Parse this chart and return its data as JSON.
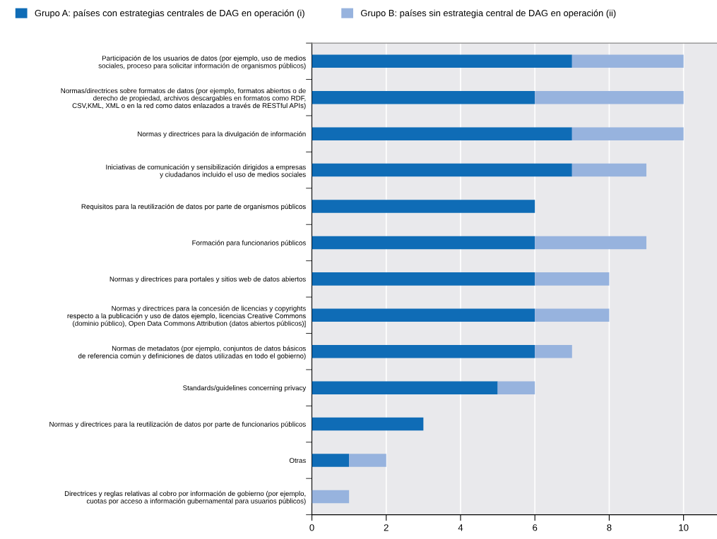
{
  "chart_data": {
    "type": "bar",
    "orientation": "horizontal",
    "stacked": true,
    "categories": [
      "Participación de los usuarios de datos (por ejemplo, uso de medios\nsociales, proceso para solicitar información de organismos públicos)",
      "Normas/directrices sobre formatos de datos (por ejemplo, formatos abiertos o de\nderecho de propiedad, archivos descargables en formatos como RDF,\nCSV,KML, XML o en la red como datos enlazados a través de RESTful APIs)",
      "Normas y directrices para la divulgación de información",
      "Iniciativas de comunicación y sensibilización dirigidos a empresas\ny ciudadanos incluido el uso de medios sociales",
      "Requisitos para la reutilización de datos por parte de organismos públicos",
      "Formación para funcionarios públicos",
      "Normas y directrices para portales y sitios web de datos abiertos",
      "Normas y directrices para la concesión de licencias y copyrights\nrespecto a la publicación y uso de datos ejemplo, licencias Creative Commons\n(dominio público), Open Data Commons Attribution (datos abiertos públicos)]",
      "Normas de metadatos (por ejemplo, conjuntos de datos básicos\nde referencia común y definiciones de datos utilizadas en todo el gobierno)",
      "Standards/guidelines concerning privacy",
      "Normas y directrices para la reutilización de datos por parte de funcionarios públicos",
      "Otras",
      "Directrices y reglas relativas al cobro por información de gobierno (por ejemplo,\ncuotas por acceso a información gubernamental para usuarios públicos)"
    ],
    "series": [
      {
        "name": "Grupo A: países con estrategias centrales de DAG en operación (i)",
        "color": "#0f6cb6",
        "values": [
          7,
          6,
          7,
          7,
          6,
          6,
          6,
          6,
          6,
          5,
          3,
          1,
          0
        ]
      },
      {
        "name": "Grupo B: países sin estrategia central de DAG en operación (ii)",
        "color": "#97b3de",
        "values": [
          3,
          4,
          3,
          2,
          0,
          3,
          2,
          2,
          1,
          1,
          0,
          1,
          1
        ]
      }
    ],
    "xlim": [
      0,
      10.9
    ],
    "xticks": [
      0,
      2,
      4,
      6,
      8,
      10
    ],
    "grid": "x",
    "legend": "top"
  }
}
